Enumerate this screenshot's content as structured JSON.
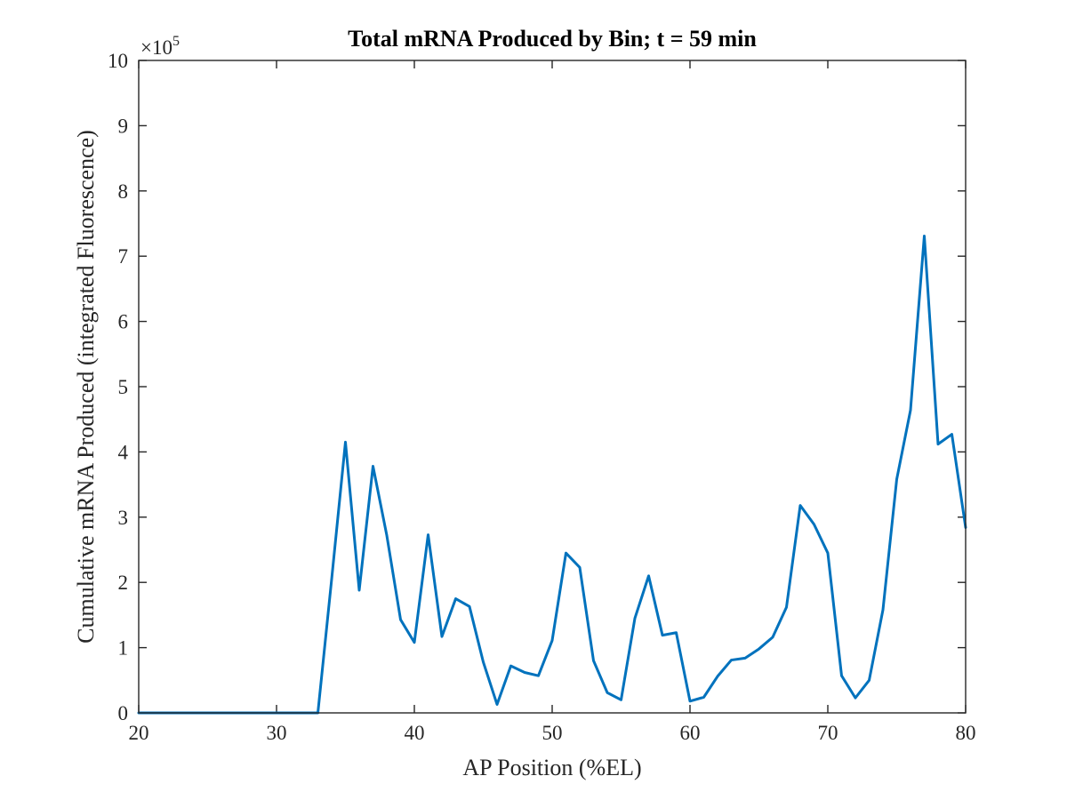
{
  "chart_data": {
    "type": "line",
    "title": "Total mRNA Produced by Bin; t = 59 min",
    "xlabel": "AP Position (%EL)",
    "ylabel": "Cumulative mRNA Produced (integrated Fluorescence)",
    "y_multiplier_base": "×10",
    "y_multiplier_exponent": "5",
    "xlim": [
      20,
      80
    ],
    "ylim": [
      0,
      1000000
    ],
    "xticks": [
      20,
      30,
      40,
      50,
      60,
      70,
      80
    ],
    "yticks": [
      0,
      100000,
      200000,
      300000,
      400000,
      500000,
      600000,
      700000,
      800000,
      900000,
      1000000
    ],
    "ytick_labels": [
      "0",
      "1",
      "2",
      "3",
      "4",
      "5",
      "6",
      "7",
      "8",
      "9",
      "10"
    ],
    "xtick_labels": [
      "20",
      "30",
      "40",
      "50",
      "60",
      "70",
      "80"
    ],
    "grid": false,
    "series": [
      {
        "color": "#0072BD",
        "x": [
          20,
          21,
          22,
          23,
          24,
          25,
          26,
          27,
          28,
          29,
          30,
          31,
          32,
          33,
          34,
          35,
          36,
          37,
          38,
          39,
          40,
          41,
          42,
          43,
          44,
          45,
          46,
          47,
          48,
          49,
          50,
          51,
          52,
          53,
          54,
          55,
          56,
          57,
          58,
          59,
          60,
          61,
          62,
          63,
          64,
          65,
          66,
          67,
          68,
          69,
          70,
          71,
          72,
          73,
          74,
          75,
          76,
          77,
          78,
          79,
          80
        ],
        "y": [
          0,
          0,
          0,
          0,
          0,
          0,
          0,
          0,
          0,
          0,
          0,
          0,
          0,
          0,
          205000,
          415000,
          188000,
          378000,
          272000,
          143000,
          108000,
          273000,
          117000,
          175000,
          163000,
          78000,
          13000,
          72000,
          62000,
          57000,
          111000,
          245000,
          223000,
          80000,
          31000,
          20000,
          145000,
          210000,
          119000,
          123000,
          18000,
          24000,
          56000,
          81000,
          84000,
          98000,
          116000,
          162000,
          318000,
          289000,
          245000,
          57000,
          23000,
          50000,
          158000,
          358000,
          464000,
          731000,
          412000,
          427000,
          284000
        ]
      }
    ]
  }
}
